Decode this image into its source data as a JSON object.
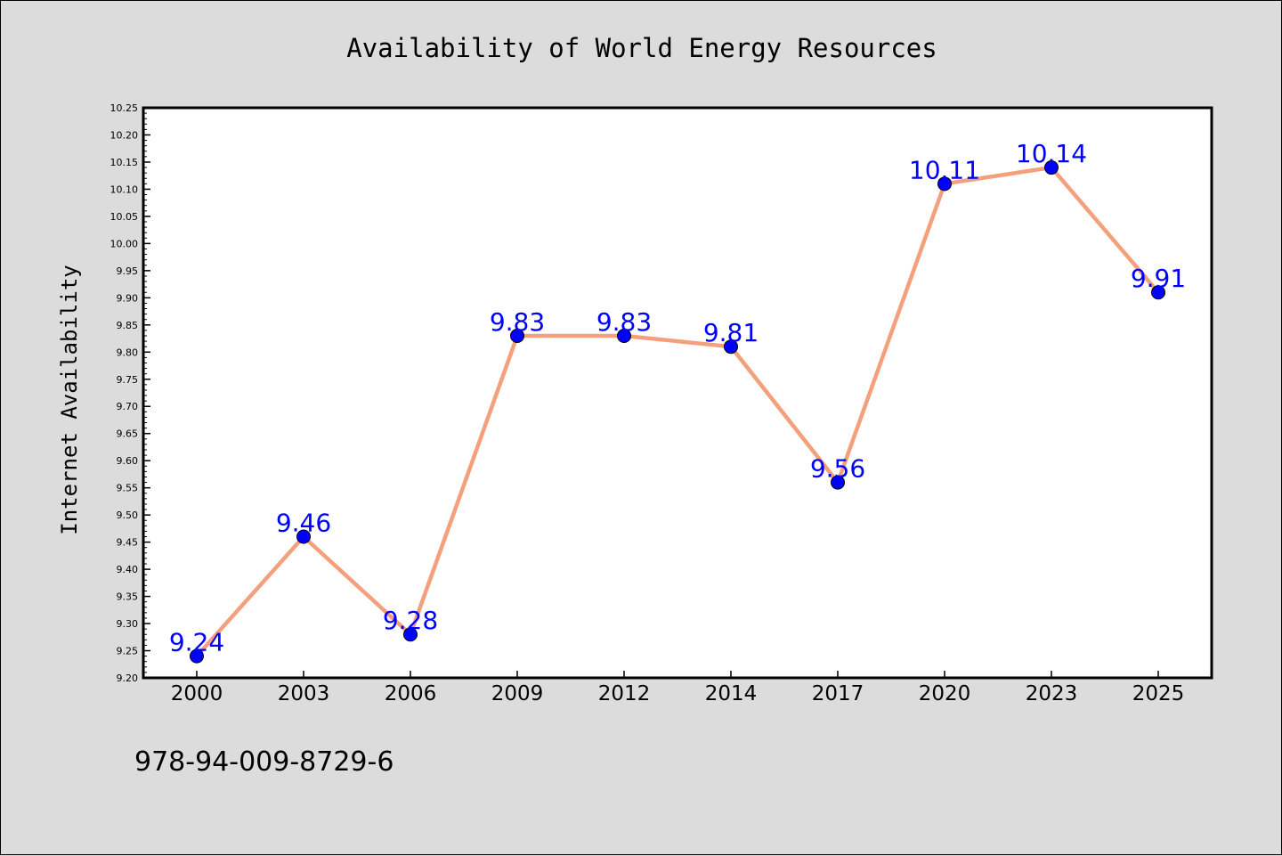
{
  "chart_data": {
    "type": "line",
    "title": "Availability of World Energy Resources",
    "xlabel": "",
    "ylabel": "Internet Availability",
    "categories": [
      "2000",
      "2003",
      "2006",
      "2009",
      "2012",
      "2014",
      "2017",
      "2020",
      "2023",
      "2025"
    ],
    "series": [
      {
        "values": [
          9.24,
          9.46,
          9.28,
          9.83,
          9.83,
          9.81,
          9.56,
          10.11,
          10.14,
          9.91
        ],
        "data_labels": [
          "9.24",
          "9.46",
          "9.28",
          "9.83",
          "9.83",
          "9.81",
          "9.56",
          "10.11",
          "10.14",
          "9.91"
        ],
        "line_color": "#f4a07c",
        "marker_color": "#0000ff",
        "label_color": "#0000ff"
      }
    ],
    "ylim": [
      9.2,
      10.25
    ],
    "yticks": [
      "9.20",
      "9.25",
      "9.30",
      "9.35",
      "9.40",
      "9.45",
      "9.50",
      "9.55",
      "9.60",
      "9.65",
      "9.70",
      "9.75",
      "9.80",
      "9.85",
      "9.90",
      "9.95",
      "10.00",
      "10.05",
      "10.10",
      "10.15",
      "10.20",
      "10.25"
    ],
    "grid": false,
    "legend": "none"
  },
  "footer": {
    "isbn": "978-94-009-8729-6"
  },
  "colors": {
    "background": "#dcdcdc",
    "plot_background": "#ffffff",
    "axis": "#000000"
  }
}
